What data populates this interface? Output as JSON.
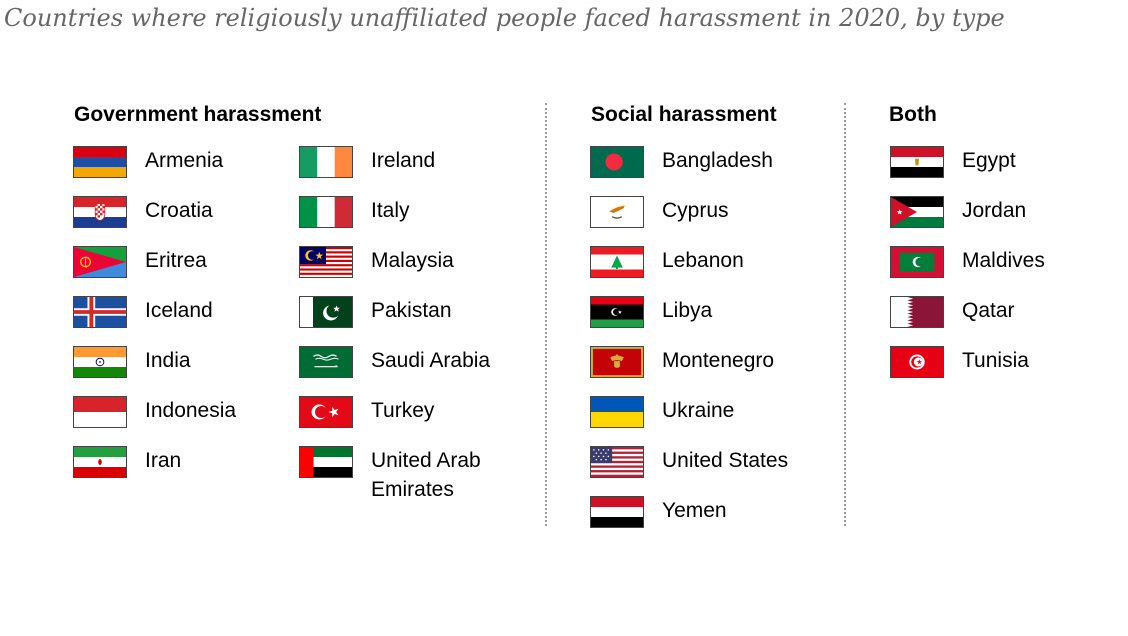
{
  "title": "Countries where religiously unaffiliated people faced harassment in 2020, by type",
  "sections": {
    "government": {
      "heading": "Government harassment",
      "col1": [
        {
          "name": "Armenia",
          "flag": "armenia-flag"
        },
        {
          "name": "Croatia",
          "flag": "croatia-flag"
        },
        {
          "name": "Eritrea",
          "flag": "eritrea-flag"
        },
        {
          "name": "Iceland",
          "flag": "iceland-flag"
        },
        {
          "name": "India",
          "flag": "india-flag"
        },
        {
          "name": "Indonesia",
          "flag": "indonesia-flag"
        },
        {
          "name": "Iran",
          "flag": "iran-flag"
        }
      ],
      "col2": [
        {
          "name": "Ireland",
          "flag": "ireland-flag"
        },
        {
          "name": "Italy",
          "flag": "italy-flag"
        },
        {
          "name": "Malaysia",
          "flag": "malaysia-flag"
        },
        {
          "name": "Pakistan",
          "flag": "pakistan-flag"
        },
        {
          "name": "Saudi Arabia",
          "flag": "saudi-arabia-flag"
        },
        {
          "name": "Turkey",
          "flag": "turkey-flag"
        },
        {
          "name": "United Arab Emirates",
          "flag": "uae-flag"
        }
      ]
    },
    "social": {
      "heading": "Social harassment",
      "items": [
        {
          "name": "Bangladesh",
          "flag": "bangladesh-flag"
        },
        {
          "name": "Cyprus",
          "flag": "cyprus-flag"
        },
        {
          "name": "Lebanon",
          "flag": "lebanon-flag"
        },
        {
          "name": "Libya",
          "flag": "libya-flag"
        },
        {
          "name": "Montenegro",
          "flag": "montenegro-flag"
        },
        {
          "name": "Ukraine",
          "flag": "ukraine-flag"
        },
        {
          "name": "United States",
          "flag": "united-states-flag"
        },
        {
          "name": "Yemen",
          "flag": "yemen-flag"
        }
      ]
    },
    "both": {
      "heading": "Both",
      "items": [
        {
          "name": "Egypt",
          "flag": "egypt-flag"
        },
        {
          "name": "Jordan",
          "flag": "jordan-flag"
        },
        {
          "name": "Maldives",
          "flag": "maldives-flag"
        },
        {
          "name": "Qatar",
          "flag": "qatar-flag"
        },
        {
          "name": "Tunisia",
          "flag": "tunisia-flag"
        }
      ]
    }
  }
}
